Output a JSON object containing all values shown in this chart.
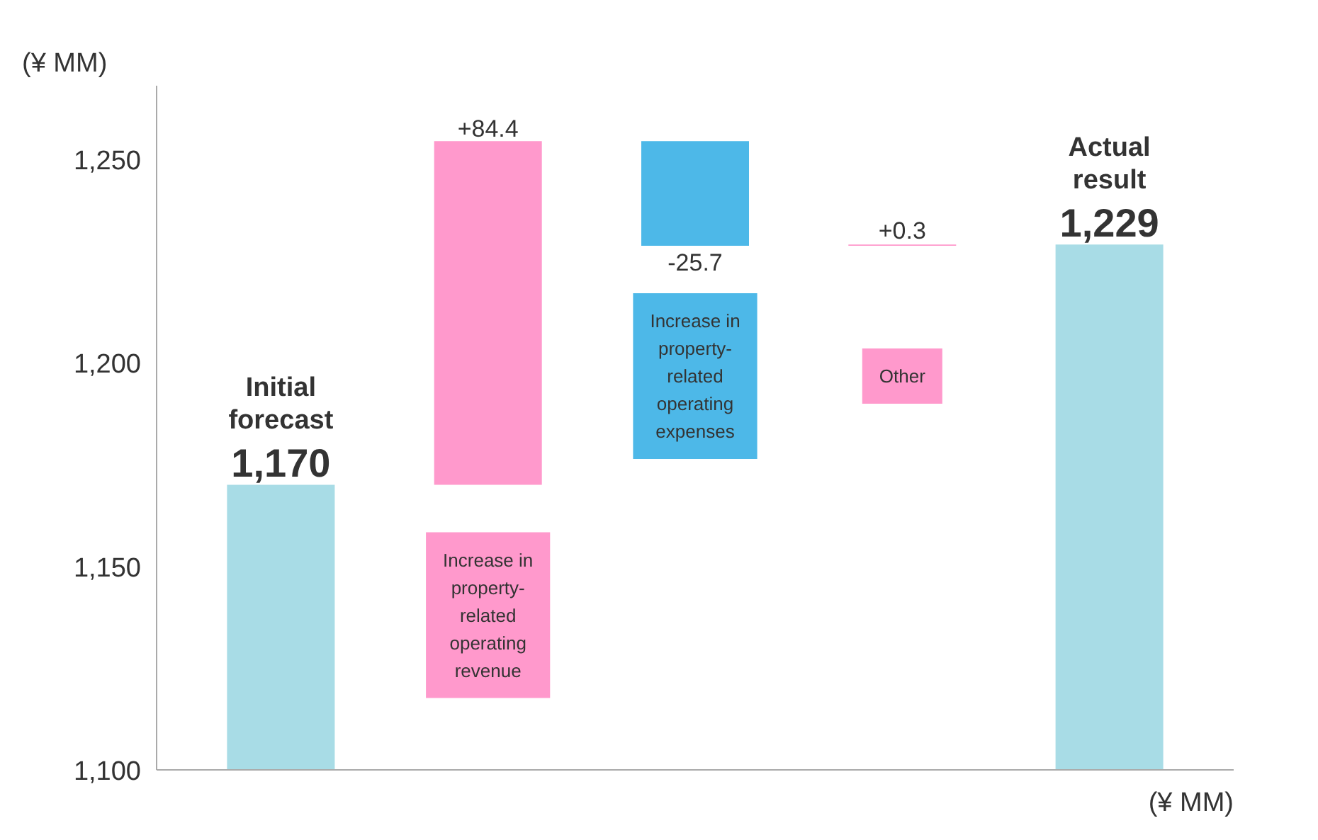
{
  "chart_data": {
    "type": "bar",
    "ylabel": "(¥ MM)",
    "categories": [
      null,
      null,
      null,
      null,
      null
    ],
    "values": [
      1170,
      84.4,
      -25.7,
      0.3,
      1229
    ],
    "base": [
      null,
      1170,
      1254.4,
      1228.7,
      null
    ],
    "colors": [
      "#a8dce6",
      "#ff99cc",
      "#4db8e8",
      "#ff99cc",
      "#a8dce6"
    ],
    "value_labels": [
      "1,170",
      "+84.4",
      "-25.7",
      "+0.3",
      "1,229"
    ],
    "xlabel": "(¥ MM)",
    "annotations": [
      "Initial forecast",
      "Increase in property-related operating revenue",
      "Increase in property-related operating expenses",
      "Other",
      "Actual result"
    ],
    "ylim": [
      1100,
      1268
    ],
    "yticks": [
      {
        "value": 1100,
        "label": "1,100"
      },
      {
        "value": 1150,
        "label": "1,150"
      },
      {
        "value": 1200,
        "label": "1,200"
      },
      {
        "value": 1250,
        "label": "1,250"
      }
    ],
    "grid": false
  }
}
